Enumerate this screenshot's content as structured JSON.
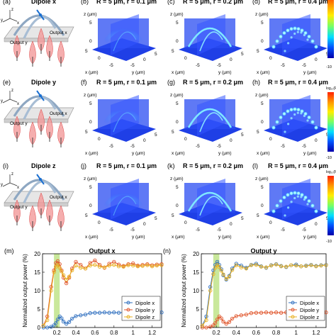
{
  "rows": [
    {
      "schematic": {
        "panel": "(a)",
        "title": "Dipole x",
        "out_x": "Output x",
        "out_y": "Output y",
        "axes": [
          "z",
          "y",
          "x"
        ]
      },
      "panels": [
        {
          "label": "(b)",
          "title": "R = 5 μm, r = 0.1 μm",
          "field": "broad"
        },
        {
          "label": "(c)",
          "title": "R = 5 μm, r = 0.2 μm",
          "field": "arc"
        },
        {
          "label": "(d)",
          "title": "R = 5 μm, r = 0.4 μm",
          "field": "dots"
        }
      ]
    },
    {
      "schematic": {
        "panel": "(e)",
        "title": "Dipole y",
        "out_x": "Output x",
        "out_y": "Output y",
        "axes": [
          "z",
          "y",
          "x"
        ]
      },
      "panels": [
        {
          "label": "(f)",
          "title": "R = 5 μm, r = 0.1 μm",
          "field": "broad"
        },
        {
          "label": "(g)",
          "title": "R = 5 μm, r = 0.2 μm",
          "field": "arc"
        },
        {
          "label": "(h)",
          "title": "R = 5 μm, r = 0.4 μm",
          "field": "dots"
        }
      ]
    },
    {
      "schematic": {
        "panel": "(i)",
        "title": "Dipole z",
        "out_x": "Output x",
        "out_y": "Output y",
        "axes": [
          "z",
          "y",
          "x"
        ]
      },
      "panels": [
        {
          "label": "(j)",
          "title": "R = 5 μm, r = 0.1 μm",
          "field": "broad"
        },
        {
          "label": "(k)",
          "title": "R = 5 μm, r = 0.2 μm",
          "field": "arc"
        },
        {
          "label": "(l)",
          "title": "R = 5 μm, r = 0.4 μm",
          "field": "dots"
        }
      ]
    }
  ],
  "axes3d": {
    "zlabel": "z (μm)",
    "xlabel": "x (μm)",
    "ylabel": "y (μm)",
    "zticks": [
      "5",
      "0"
    ],
    "xticks": [
      "5",
      "0",
      "-5"
    ],
    "yticks": [
      "-5",
      "0",
      "5"
    ]
  },
  "colorbar": {
    "label": "log₁₀(P)",
    "min": "-10",
    "stops": [
      "#ff2200",
      "#ff9900",
      "#ffee00",
      "#77ff66",
      "#00ddff",
      "#0055ff",
      "#0000aa"
    ]
  },
  "colors": {
    "dipole_x": "#2f6fbf",
    "dipole_y": "#e0552b",
    "dipole_z": "#e8b020",
    "band": "#b7e07a"
  },
  "chart_data": [
    {
      "type": "line",
      "panel": "(m)",
      "title": "Output x",
      "ylabel": "Normalized output power (%)",
      "xlim": [
        0.05,
        1.3
      ],
      "ylim": [
        0,
        20
      ],
      "xticks": [
        "0.2",
        "0.4",
        "0.6",
        "0.8",
        "1",
        "1.2"
      ],
      "yticks": [
        "0",
        "5",
        "10",
        "15",
        "20"
      ],
      "band": [
        0.17,
        0.23
      ],
      "x": [
        0.06,
        0.1,
        0.14,
        0.17,
        0.19,
        0.21,
        0.23,
        0.25,
        0.27,
        0.3,
        0.33,
        0.36,
        0.4,
        0.45,
        0.5,
        0.55,
        0.6,
        0.65,
        0.7,
        0.75,
        0.8,
        0.85,
        0.9,
        0.95,
        1.0,
        1.05,
        1.1,
        1.15,
        1.2,
        1.25,
        1.3
      ],
      "series": [
        {
          "name": "Dipole x",
          "values": [
            0,
            0,
            0.2,
            0.6,
            1.2,
            2.2,
            3.0,
            2.5,
            1.6,
            1.0,
            1.5,
            2.4,
            3.1,
            3.3,
            3.5,
            3.9,
            4.0,
            4.0,
            4.1,
            4.0,
            4.1,
            4.0,
            4.1,
            4.0,
            4.1,
            4.1,
            4.0,
            4.1,
            4.0,
            4.0,
            4.1
          ]
        },
        {
          "name": "Dipole y",
          "values": [
            0.5,
            3,
            11,
            15.5,
            17.5,
            18,
            17.2,
            15.5,
            13.5,
            12,
            13.5,
            16,
            17.8,
            17,
            16,
            17.5,
            18.2,
            17,
            16.2,
            17.3,
            17.8,
            17.1,
            16.7,
            17.2,
            17.4,
            16.8,
            17,
            17.2,
            16.9,
            17.1,
            17.2
          ]
        },
        {
          "name": "Dipole z",
          "values": [
            0.5,
            2,
            10,
            15,
            16.5,
            17,
            16.2,
            15.2,
            14.2,
            13,
            13.8,
            15.5,
            16.8,
            16.2,
            16,
            16.8,
            17,
            16.5,
            16.3,
            16.8,
            17,
            16.6,
            16.5,
            16.9,
            16.8,
            16.6,
            16.7,
            16.9,
            16.6,
            16.8,
            16.9
          ]
        }
      ]
    },
    {
      "type": "line",
      "panel": "(n)",
      "title": "Output y",
      "ylabel": "Normalized output power (%)",
      "xlim": [
        0.05,
        1.3
      ],
      "ylim": [
        0,
        20
      ],
      "xticks": [
        "0.2",
        "0.4",
        "0.6",
        "0.8",
        "1",
        "1.2"
      ],
      "yticks": [
        "0",
        "5",
        "10",
        "15",
        "20"
      ],
      "band": [
        0.17,
        0.23
      ],
      "x": [
        0.06,
        0.1,
        0.14,
        0.17,
        0.19,
        0.21,
        0.23,
        0.25,
        0.27,
        0.3,
        0.33,
        0.36,
        0.4,
        0.45,
        0.5,
        0.55,
        0.6,
        0.65,
        0.7,
        0.75,
        0.8,
        0.85,
        0.9,
        0.95,
        1.0,
        1.05,
        1.1,
        1.15,
        1.2,
        1.25,
        1.3
      ],
      "series": [
        {
          "name": "Dipole x",
          "values": [
            0.5,
            3,
            11,
            15.5,
            17,
            17.8,
            17,
            15.8,
            14.2,
            13,
            14,
            16,
            17.3,
            16.8,
            16.2,
            17,
            17.3,
            16.6,
            16.2,
            16.9,
            17.2,
            16.7,
            16.4,
            16.9,
            17.1,
            16.6,
            16.8,
            17,
            16.7,
            16.9,
            17
          ]
        },
        {
          "name": "Dipole y",
          "values": [
            0,
            0,
            0.2,
            0.6,
            1.2,
            2.2,
            3.0,
            2.5,
            1.6,
            1.0,
            1.5,
            2.4,
            3.1,
            3.3,
            3.5,
            3.9,
            4.0,
            4.0,
            4.1,
            4.0,
            4.1,
            4.0,
            4.1,
            4.0,
            4.1,
            4.1,
            4.0,
            4.1,
            4.0,
            4.0,
            4.1
          ]
        },
        {
          "name": "Dipole z",
          "values": [
            0.5,
            2,
            10,
            14.5,
            16.2,
            17,
            16.4,
            15.4,
            14.4,
            13.2,
            13.8,
            15.6,
            16.9,
            16.3,
            16,
            16.9,
            17,
            16.5,
            16.3,
            16.8,
            17.1,
            16.6,
            16.5,
            16.9,
            16.8,
            16.6,
            16.7,
            16.9,
            16.6,
            16.8,
            16.9
          ]
        }
      ]
    }
  ]
}
